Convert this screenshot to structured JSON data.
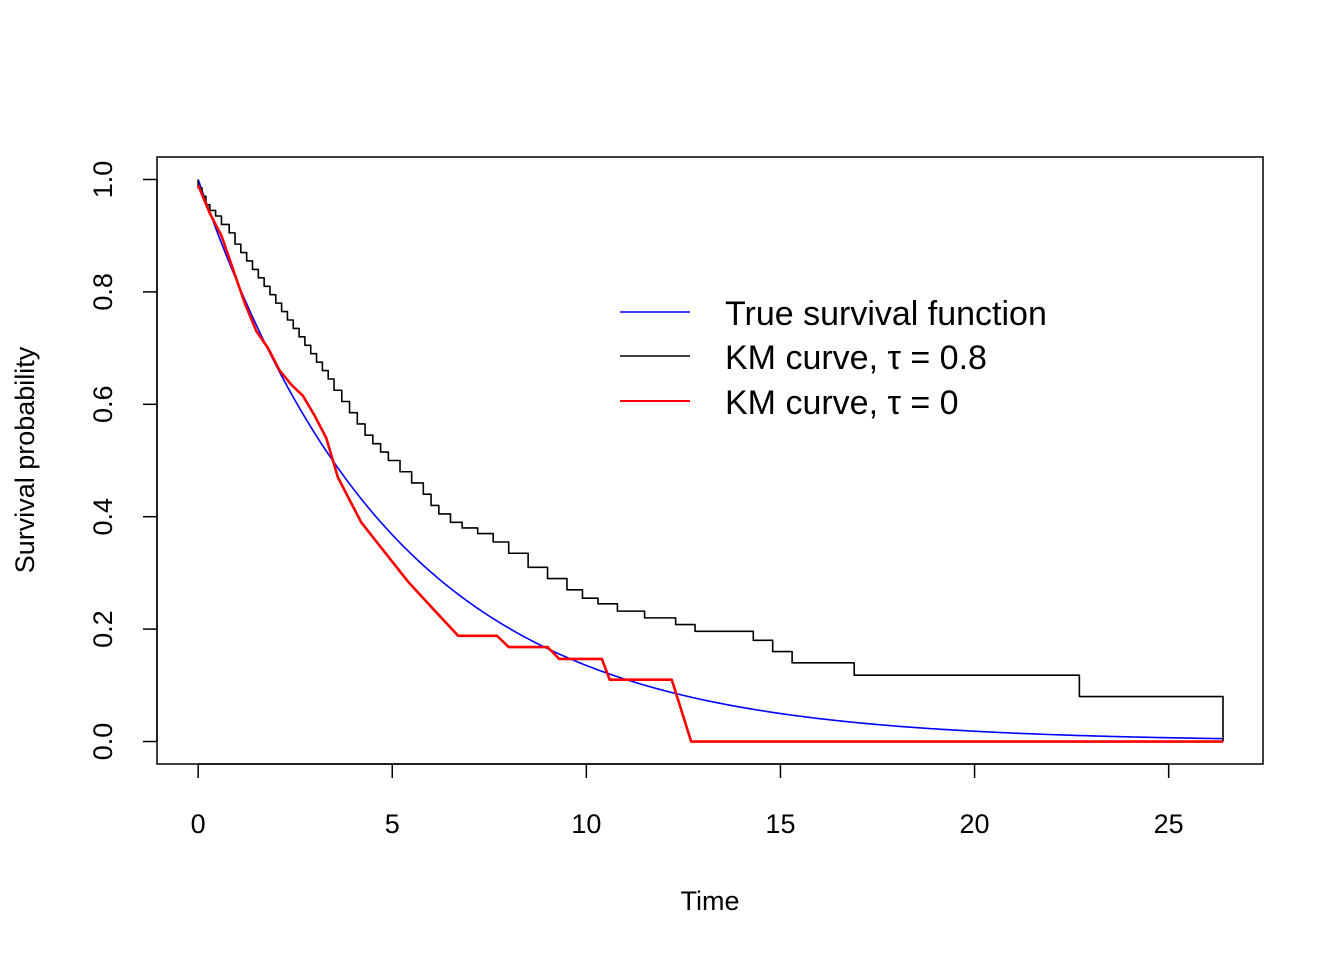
{
  "chart_data": {
    "type": "line",
    "title": "",
    "xlabel": "Time",
    "ylabel": "Survival probability",
    "xlim": [
      -1.06,
      27.43
    ],
    "ylim": [
      -0.04,
      1.04
    ],
    "xticks": [
      0,
      5,
      10,
      15,
      20,
      25
    ],
    "xtick_labels": [
      "0",
      "5",
      "10",
      "15",
      "20",
      "25"
    ],
    "yticks": [
      0.0,
      0.2,
      0.4,
      0.6,
      0.8,
      1.0
    ],
    "ytick_labels": [
      "0.0",
      "0.2",
      "0.4",
      "0.6",
      "0.8",
      "1.0"
    ],
    "grid": false,
    "legend_position": "top-right",
    "series": [
      {
        "name": "True survival function",
        "legend_label": "True survival function",
        "color": "#0000ff",
        "style": "smooth",
        "rate": 0.2,
        "x_range": [
          0,
          26.4
        ]
      },
      {
        "name": "KM curve, τ = 0.8",
        "legend_label": "KM curve, τ = 0.8",
        "color": "#000000",
        "style": "step",
        "x": [
          0,
          0.1,
          0.2,
          0.3,
          0.45,
          0.6,
          0.8,
          0.95,
          1.1,
          1.25,
          1.4,
          1.55,
          1.7,
          1.85,
          2.0,
          2.15,
          2.3,
          2.45,
          2.6,
          2.75,
          2.9,
          3.05,
          3.2,
          3.35,
          3.5,
          3.7,
          3.9,
          4.1,
          4.3,
          4.5,
          4.7,
          4.9,
          5.2,
          5.5,
          5.8,
          6.0,
          6.2,
          6.5,
          6.8,
          7.2,
          7.6,
          8.0,
          8.5,
          9.0,
          9.5,
          9.9,
          10.3,
          10.8,
          11.5,
          12.3,
          12.8,
          14.3,
          14.8,
          15.3,
          15.8,
          16.9,
          22.7,
          26.4
        ],
        "y": [
          0.985,
          0.97,
          0.955,
          0.945,
          0.935,
          0.92,
          0.905,
          0.885,
          0.87,
          0.855,
          0.84,
          0.825,
          0.81,
          0.795,
          0.78,
          0.765,
          0.75,
          0.735,
          0.72,
          0.705,
          0.69,
          0.675,
          0.66,
          0.645,
          0.625,
          0.605,
          0.585,
          0.565,
          0.545,
          0.53,
          0.515,
          0.5,
          0.48,
          0.46,
          0.44,
          0.42,
          0.405,
          0.39,
          0.38,
          0.37,
          0.355,
          0.335,
          0.31,
          0.29,
          0.27,
          0.255,
          0.245,
          0.232,
          0.22,
          0.208,
          0.196,
          0.18,
          0.16,
          0.14,
          0.14,
          0.118,
          0.08,
          0.0
        ]
      },
      {
        "name": "KM curve, τ = 0",
        "legend_label": "KM curve, τ = 0",
        "color": "#ff0000",
        "style": "line",
        "x": [
          0,
          0.3,
          0.6,
          0.9,
          1.2,
          1.5,
          1.8,
          2.1,
          2.4,
          2.7,
          3.0,
          3.3,
          3.6,
          3.9,
          4.2,
          4.6,
          5.0,
          5.4,
          5.8,
          6.2,
          6.7,
          7.7,
          8.0,
          9.0,
          9.3,
          10.4,
          10.6,
          12.2,
          12.7,
          26.4
        ],
        "y": [
          0.99,
          0.94,
          0.9,
          0.84,
          0.78,
          0.73,
          0.7,
          0.66,
          0.635,
          0.615,
          0.58,
          0.54,
          0.47,
          0.43,
          0.39,
          0.355,
          0.32,
          0.285,
          0.255,
          0.225,
          0.188,
          0.188,
          0.168,
          0.168,
          0.147,
          0.147,
          0.11,
          0.11,
          0.0,
          0.0
        ]
      }
    ]
  }
}
